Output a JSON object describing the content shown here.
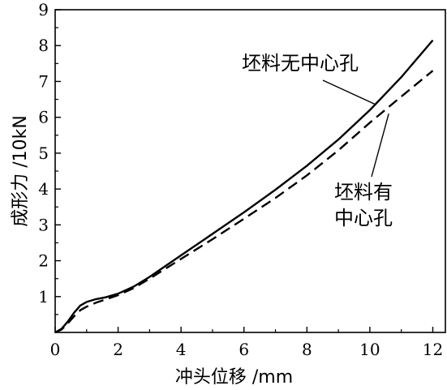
{
  "chart_data": {
    "type": "line",
    "xlabel": "冲头位移 /mm",
    "ylabel": "成形力 /10kN",
    "xlim": [
      0,
      12.4
    ],
    "ylim": [
      0,
      9
    ],
    "xticks": [
      0,
      2,
      4,
      6,
      8,
      10,
      12
    ],
    "yticks": [
      1,
      2,
      3,
      4,
      5,
      6,
      7,
      8,
      9
    ],
    "x_tick_labels": [
      "0",
      "2",
      "4",
      "6",
      "8",
      "10",
      "12"
    ],
    "y_tick_labels": [
      "1",
      "2",
      "3",
      "4",
      "5",
      "6",
      "7",
      "8",
      "9"
    ],
    "grid": false,
    "series": [
      {
        "name": "坯料无中心孔",
        "style": "solid",
        "color": "#000000",
        "x": [
          0,
          0.2,
          0.4,
          0.6,
          0.8,
          1.0,
          1.3,
          1.6,
          2.0,
          2.5,
          3.0,
          4.0,
          5.0,
          6.0,
          7.0,
          8.0,
          9.0,
          10.0,
          11.0,
          12.0
        ],
        "y": [
          0,
          0.1,
          0.3,
          0.55,
          0.75,
          0.85,
          0.93,
          0.98,
          1.08,
          1.28,
          1.55,
          2.15,
          2.75,
          3.35,
          3.98,
          4.65,
          5.38,
          6.2,
          7.12,
          8.15
        ]
      },
      {
        "name": "坯料有中心孔",
        "style": "dashed",
        "color": "#000000",
        "x": [
          0,
          0.2,
          0.4,
          0.6,
          0.8,
          1.0,
          1.3,
          1.6,
          2.0,
          2.5,
          3.0,
          4.0,
          5.0,
          6.0,
          7.0,
          8.0,
          9.0,
          10.0,
          11.0,
          12.0
        ],
        "y": [
          0,
          0.08,
          0.25,
          0.45,
          0.62,
          0.72,
          0.83,
          0.92,
          1.04,
          1.24,
          1.5,
          2.05,
          2.6,
          3.17,
          3.75,
          4.38,
          5.08,
          5.85,
          6.58,
          7.3
        ]
      }
    ],
    "annotations": [
      {
        "lines": [
          "坯料无中心孔"
        ],
        "target_series": 0
      },
      {
        "lines": [
          "坯料有",
          "中心孔"
        ],
        "target_series": 1
      }
    ]
  }
}
